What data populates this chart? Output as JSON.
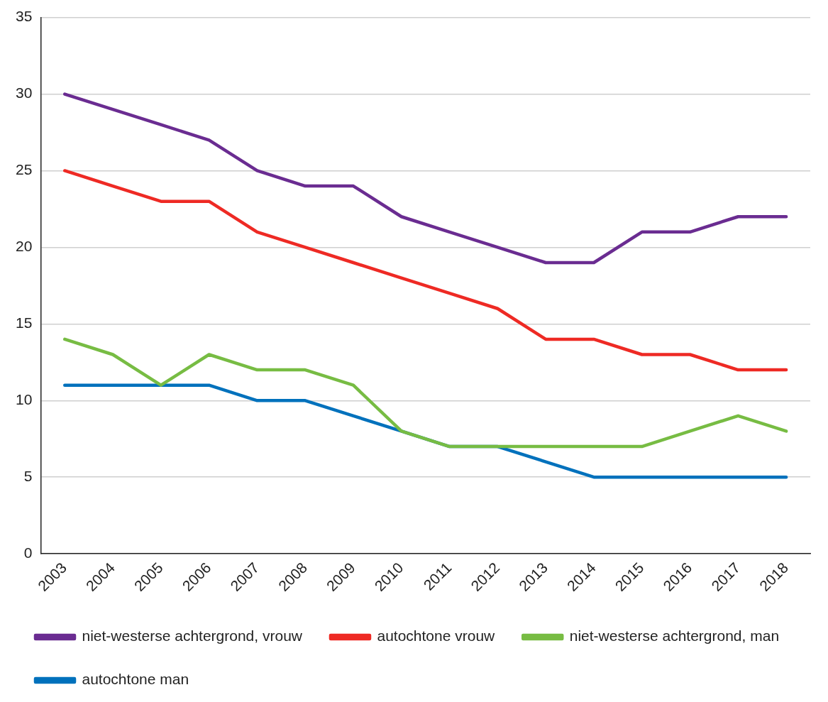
{
  "chart_data": {
    "type": "line",
    "categories": [
      "2003",
      "2004",
      "2005",
      "2006",
      "2007",
      "2008",
      "2009",
      "2010",
      "2011",
      "2012",
      "2013",
      "2014",
      "2015",
      "2016",
      "2017",
      "2018"
    ],
    "series": [
      {
        "name": "niet-westerse achtergrond, vrouw",
        "color": "#6a2c91",
        "values": [
          30,
          29,
          28,
          27,
          25,
          24,
          24,
          22,
          21,
          20,
          19,
          19,
          21,
          21,
          22,
          22
        ]
      },
      {
        "name": "autochtone vrouw",
        "color": "#ee2a24",
        "values": [
          25,
          24,
          23,
          23,
          21,
          20,
          19,
          18,
          17,
          16,
          14,
          14,
          13,
          13,
          12,
          12
        ]
      },
      {
        "name": "niet-westerse achtergrond, man",
        "color": "#77bc43",
        "values": [
          14,
          13,
          11,
          13,
          12,
          12,
          11,
          8,
          7,
          7,
          7,
          7,
          7,
          8,
          9,
          8
        ]
      },
      {
        "name": "autochtone man",
        "color": "#0071bc",
        "values": [
          11,
          11,
          11,
          11,
          10,
          10,
          9,
          8,
          7,
          7,
          6,
          5,
          5,
          5,
          5,
          5
        ]
      }
    ],
    "ylim": [
      0,
      35
    ],
    "yticks": [
      0,
      5,
      10,
      15,
      20,
      25,
      30,
      35
    ],
    "grid": "y",
    "legend": "bottom",
    "marker": "none",
    "line_style": "solid"
  }
}
